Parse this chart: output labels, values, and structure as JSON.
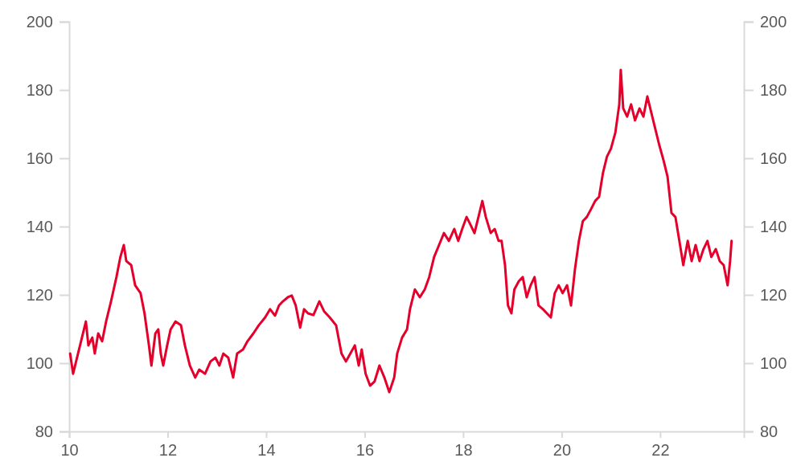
{
  "chart_data": {
    "type": "line",
    "xlim": [
      10,
      23.7
    ],
    "xticks": [
      10,
      12,
      14,
      16,
      18,
      20,
      22
    ],
    "ylim": [
      80,
      200
    ],
    "yticks": [
      80,
      100,
      120,
      140,
      160,
      180,
      200
    ],
    "y2lim": [
      80,
      200
    ],
    "y2ticks": [
      80,
      100,
      120,
      140,
      160,
      180,
      200
    ],
    "grid": false,
    "marker": "none",
    "line_style": "solid",
    "x": [
      10.02,
      10.08,
      10.16,
      10.28,
      10.34,
      10.39,
      10.47,
      10.52,
      10.59,
      10.67,
      10.75,
      10.85,
      10.96,
      11.04,
      11.11,
      11.16,
      11.26,
      11.34,
      11.45,
      11.53,
      11.62,
      11.67,
      11.75,
      11.81,
      11.86,
      11.91,
      11.99,
      12.06,
      12.16,
      12.27,
      12.35,
      12.45,
      12.56,
      12.64,
      12.76,
      12.87,
      12.97,
      13.05,
      13.13,
      13.23,
      13.33,
      13.41,
      13.53,
      13.62,
      13.74,
      13.85,
      13.98,
      14.08,
      14.18,
      14.26,
      14.34,
      14.44,
      14.52,
      14.6,
      14.69,
      14.77,
      14.85,
      14.96,
      15.08,
      15.18,
      15.29,
      15.42,
      15.53,
      15.62,
      15.71,
      15.8,
      15.88,
      15.94,
      16.02,
      16.11,
      16.2,
      16.3,
      16.4,
      16.5,
      16.6,
      16.66,
      16.76,
      16.86,
      16.92,
      17.02,
      17.12,
      17.22,
      17.31,
      17.41,
      17.51,
      17.61,
      17.71,
      17.82,
      17.9,
      17.98,
      18.07,
      18.15,
      18.23,
      18.31,
      18.39,
      18.46,
      18.56,
      18.64,
      18.72,
      18.78,
      18.85,
      18.91,
      18.98,
      19.04,
      19.13,
      19.21,
      19.29,
      19.37,
      19.45,
      19.53,
      19.62,
      19.7,
      19.78,
      19.86,
      19.94,
      20.02,
      20.11,
      20.19,
      20.27,
      20.35,
      20.43,
      20.51,
      20.6,
      20.68,
      20.76,
      20.84,
      20.92,
      21.0,
      21.09,
      21.17,
      21.2,
      21.25,
      21.33,
      21.41,
      21.49,
      21.58,
      21.66,
      21.74,
      21.82,
      21.9,
      21.98,
      22.07,
      22.15,
      22.23,
      22.31,
      22.39,
      22.47,
      22.56,
      22.64,
      22.72,
      22.8,
      22.88,
      22.96,
      23.04,
      23.13,
      23.21,
      23.29,
      23.37,
      23.42,
      23.45
    ],
    "series": [
      {
        "color": "#e4002b",
        "values": [
          102.8,
          96.9,
          101.6,
          108.7,
          112.2,
          105.2,
          107.5,
          102.8,
          108.7,
          106.4,
          112.2,
          118.1,
          125.2,
          131.1,
          134.6,
          129.9,
          128.7,
          122.8,
          120.5,
          114.6,
          105.2,
          99.3,
          108.7,
          109.9,
          102.8,
          99.3,
          105.2,
          109.9,
          112.2,
          111.1,
          105.2,
          99.3,
          95.8,
          98.1,
          96.9,
          100.5,
          101.6,
          99.3,
          102.8,
          101.6,
          95.8,
          102.8,
          104.0,
          106.4,
          108.7,
          111.1,
          113.4,
          115.8,
          113.9,
          116.9,
          118.1,
          119.3,
          119.8,
          116.9,
          110.4,
          115.8,
          114.6,
          114.1,
          118.1,
          115.1,
          113.4,
          111.1,
          102.8,
          100.5,
          102.8,
          105.2,
          99.3,
          104.0,
          96.9,
          93.4,
          94.6,
          99.3,
          95.8,
          91.5,
          95.8,
          102.8,
          107.5,
          109.9,
          115.8,
          121.6,
          119.3,
          121.6,
          125.2,
          131.1,
          134.6,
          138.1,
          135.8,
          139.3,
          135.8,
          139.3,
          142.8,
          140.5,
          138.1,
          142.8,
          147.5,
          142.8,
          138.1,
          139.3,
          135.8,
          135.8,
          128.7,
          116.9,
          114.6,
          121.6,
          124.0,
          125.2,
          119.3,
          122.8,
          125.2,
          116.9,
          115.8,
          114.6,
          113.4,
          120.5,
          122.8,
          120.5,
          122.8,
          116.9,
          127.5,
          135.8,
          141.6,
          142.8,
          145.2,
          147.5,
          148.7,
          155.8,
          160.5,
          162.8,
          167.5,
          175.8,
          185.9,
          174.6,
          172.2,
          175.8,
          171.1,
          174.6,
          172.2,
          178.1,
          173.4,
          168.7,
          164.0,
          159.3,
          154.6,
          144.0,
          142.8,
          135.8,
          128.7,
          135.8,
          129.9,
          134.6,
          129.9,
          133.4,
          135.8,
          131.1,
          133.4,
          129.9,
          128.7,
          122.8,
          129.9,
          135.8
        ]
      }
    ]
  }
}
